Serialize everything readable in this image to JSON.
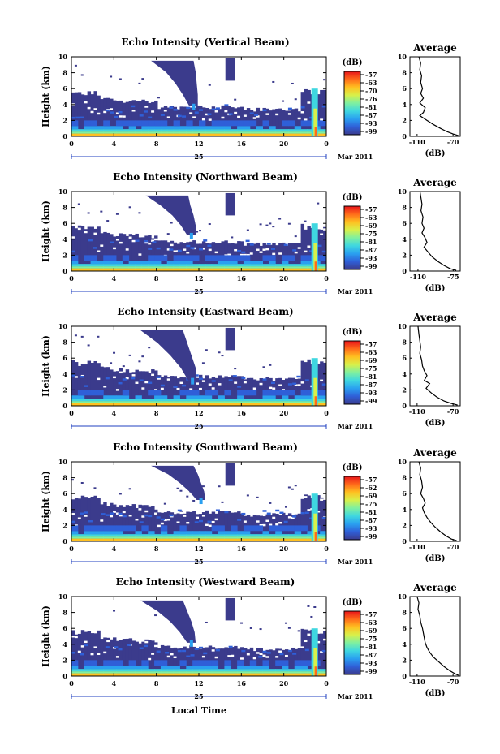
{
  "colors": {
    "background": "#ffffff",
    "ink": "#000000",
    "colormap": [
      "#3b3b8c",
      "#2f5fd8",
      "#2aa0f0",
      "#3fd7e0",
      "#7ff0a0",
      "#d8f04a",
      "#ffc020",
      "#ff6a1a",
      "#e8141a"
    ]
  },
  "chart_data": [
    {
      "type": "heatmap",
      "title": "Echo Intensity (Vertical Beam)",
      "ylabel": "Height (km)",
      "xlabel": "",
      "xlim": [
        0,
        24
      ],
      "ylim": [
        0,
        10
      ],
      "x_ticks": [
        "0",
        "4",
        "8",
        "12",
        "16",
        "20",
        "0"
      ],
      "y_ticks": [
        "0",
        "2",
        "4",
        "6",
        "8",
        "10"
      ],
      "date_label": "25",
      "month_label": "Mar 2011",
      "colorbar": {
        "unit": "(dB)",
        "ticks": [
          "-57",
          "-63",
          "-70",
          "-76",
          "-81",
          "-87",
          "-93",
          "-99"
        ]
      },
      "plume": {
        "x": [
          9.5,
          10.3,
          10.8,
          11.2,
          11.5
        ],
        "top": 9.5,
        "bottom": 3.8
      },
      "profile": {
        "title": "Average",
        "xlabel": "(dB)",
        "xticks": [
          "-110",
          "-70"
        ],
        "xlim": [
          -118,
          -62
        ],
        "x": [
          -108,
          -106,
          -107,
          -105,
          -106,
          -104,
          -106,
          -103,
          -107,
          -101,
          -103,
          -107,
          -99,
          -92,
          -84,
          -77,
          -70,
          -64
        ],
        "y": [
          10,
          9.2,
          8.4,
          7.6,
          6.8,
          6.0,
          5.4,
          4.8,
          4.2,
          3.6,
          3.0,
          2.6,
          2.0,
          1.5,
          1.0,
          0.6,
          0.3,
          0.1
        ]
      }
    },
    {
      "type": "heatmap",
      "title": "Echo Intensity (Northward Beam)",
      "ylabel": "Height (km)",
      "xlabel": "",
      "xlim": [
        0,
        24
      ],
      "ylim": [
        0,
        10
      ],
      "x_ticks": [
        "0",
        "4",
        "8",
        "12",
        "16",
        "20",
        "0"
      ],
      "y_ticks": [
        "0",
        "2",
        "4",
        "6",
        "8",
        "10"
      ],
      "date_label": "25",
      "month_label": "Mar 2011",
      "colorbar": {
        "unit": "(dB)",
        "ticks": [
          "-57",
          "-63",
          "-69",
          "-75",
          "-81",
          "-87",
          "-93",
          "-99"
        ]
      },
      "plume": {
        "x": [
          9.0,
          9.8,
          10.5,
          11.0,
          11.3
        ],
        "top": 9.5,
        "bottom": 4.5
      },
      "profile": {
        "title": "Average",
        "xlabel": "(dB)",
        "xticks": [
          "-110",
          "-75"
        ],
        "xlim": [
          -118,
          -68
        ],
        "x": [
          -108,
          -107,
          -106,
          -107,
          -105,
          -106,
          -104,
          -106,
          -103,
          -101,
          -104,
          -100,
          -96,
          -90,
          -84,
          -78,
          -72
        ],
        "y": [
          10,
          9.2,
          8.4,
          7.6,
          6.8,
          6.0,
          5.4,
          4.8,
          4.2,
          3.6,
          3.0,
          2.4,
          1.8,
          1.2,
          0.7,
          0.3,
          0.1
        ]
      }
    },
    {
      "type": "heatmap",
      "title": "Echo Intensity (Eastward Beam)",
      "ylabel": "Height (km)",
      "xlabel": "",
      "xlim": [
        0,
        24
      ],
      "ylim": [
        0,
        10
      ],
      "x_ticks": [
        "0",
        "4",
        "8",
        "12",
        "16",
        "20",
        "0"
      ],
      "y_ticks": [
        "0",
        "2",
        "4",
        "6",
        "8",
        "10"
      ],
      "date_label": "25",
      "month_label": "Mar 2011",
      "colorbar": {
        "unit": "(dB)",
        "ticks": [
          "-57",
          "-63",
          "-69",
          "-75",
          "-81",
          "-87",
          "-93",
          "-99"
        ]
      },
      "plume": {
        "x": [
          8.5,
          9.5,
          10.3,
          11.0,
          11.4
        ],
        "top": 9.5,
        "bottom": 3.2
      },
      "profile": {
        "title": "Average",
        "xlabel": "(dB)",
        "xticks": [
          "-110",
          "-70"
        ],
        "xlim": [
          -118,
          -62
        ],
        "x": [
          -109,
          -108,
          -107,
          -106,
          -107,
          -105,
          -104,
          -102,
          -99,
          -102,
          -96,
          -100,
          -94,
          -88,
          -80,
          -72,
          -65
        ],
        "y": [
          10,
          9.0,
          8.2,
          7.4,
          6.6,
          5.8,
          5.0,
          4.4,
          3.8,
          3.2,
          2.8,
          2.2,
          1.6,
          1.1,
          0.6,
          0.3,
          0.1
        ]
      }
    },
    {
      "type": "heatmap",
      "title": "Echo Intensity (Southward Beam)",
      "ylabel": "Height (km)",
      "xlabel": "",
      "xlim": [
        0,
        24
      ],
      "ylim": [
        0,
        10
      ],
      "x_ticks": [
        "0",
        "4",
        "8",
        "12",
        "16",
        "20",
        "0"
      ],
      "y_ticks": [
        "0",
        "2",
        "4",
        "6",
        "8",
        "10"
      ],
      "date_label": "25",
      "month_label": "Mar 2011",
      "colorbar": {
        "unit": "(dB)",
        "ticks": [
          "-57",
          "-62",
          "-69",
          "-75",
          "-81",
          "-87",
          "-93",
          "-99"
        ]
      },
      "plume": {
        "x": [
          9.5,
          10.5,
          11.2,
          11.8,
          12.2
        ],
        "top": 9.5,
        "bottom": 5.2
      },
      "profile": {
        "title": "Average",
        "xlabel": "(dB)",
        "xticks": [
          "-110",
          "-70"
        ],
        "xlim": [
          -118,
          -62
        ],
        "x": [
          -108,
          -106,
          -107,
          -105,
          -104,
          -106,
          -103,
          -101,
          -104,
          -102,
          -99,
          -95,
          -90,
          -84,
          -78,
          -72,
          -66
        ],
        "y": [
          10,
          9.2,
          8.4,
          7.6,
          6.8,
          6.0,
          5.4,
          4.8,
          4.2,
          3.6,
          3.0,
          2.4,
          1.8,
          1.2,
          0.7,
          0.3,
          0.1
        ]
      }
    },
    {
      "type": "heatmap",
      "title": "Echo Intensity (Westward Beam)",
      "ylabel": "Height (km)",
      "xlabel": "Local Time",
      "xlim": [
        0,
        24
      ],
      "ylim": [
        0,
        10
      ],
      "x_ticks": [
        "0",
        "4",
        "8",
        "12",
        "16",
        "20",
        "0"
      ],
      "y_ticks": [
        "0",
        "2",
        "4",
        "6",
        "8",
        "10"
      ],
      "date_label": "25",
      "month_label": "Mar 2011",
      "colorbar": {
        "unit": "(dB)",
        "ticks": [
          "-57",
          "-63",
          "-69",
          "-75",
          "-81",
          "-87",
          "-93",
          "-99"
        ]
      },
      "plume": {
        "x": [
          8.5,
          9.5,
          10.3,
          10.9,
          11.3
        ],
        "top": 9.5,
        "bottom": 4.2
      },
      "profile": {
        "title": "Average",
        "xlabel": "(dB)",
        "xticks": [
          "-110",
          "-70"
        ],
        "xlim": [
          -118,
          -62
        ],
        "x": [
          -110,
          -108,
          -109,
          -107,
          -106,
          -104,
          -103,
          -102,
          -101,
          -99,
          -96,
          -92,
          -86,
          -80,
          -74,
          -68,
          -64
        ],
        "y": [
          10,
          9.2,
          8.4,
          7.6,
          6.8,
          6.0,
          5.4,
          4.8,
          4.2,
          3.6,
          3.0,
          2.4,
          1.8,
          1.2,
          0.7,
          0.3,
          0.1
        ]
      }
    }
  ]
}
